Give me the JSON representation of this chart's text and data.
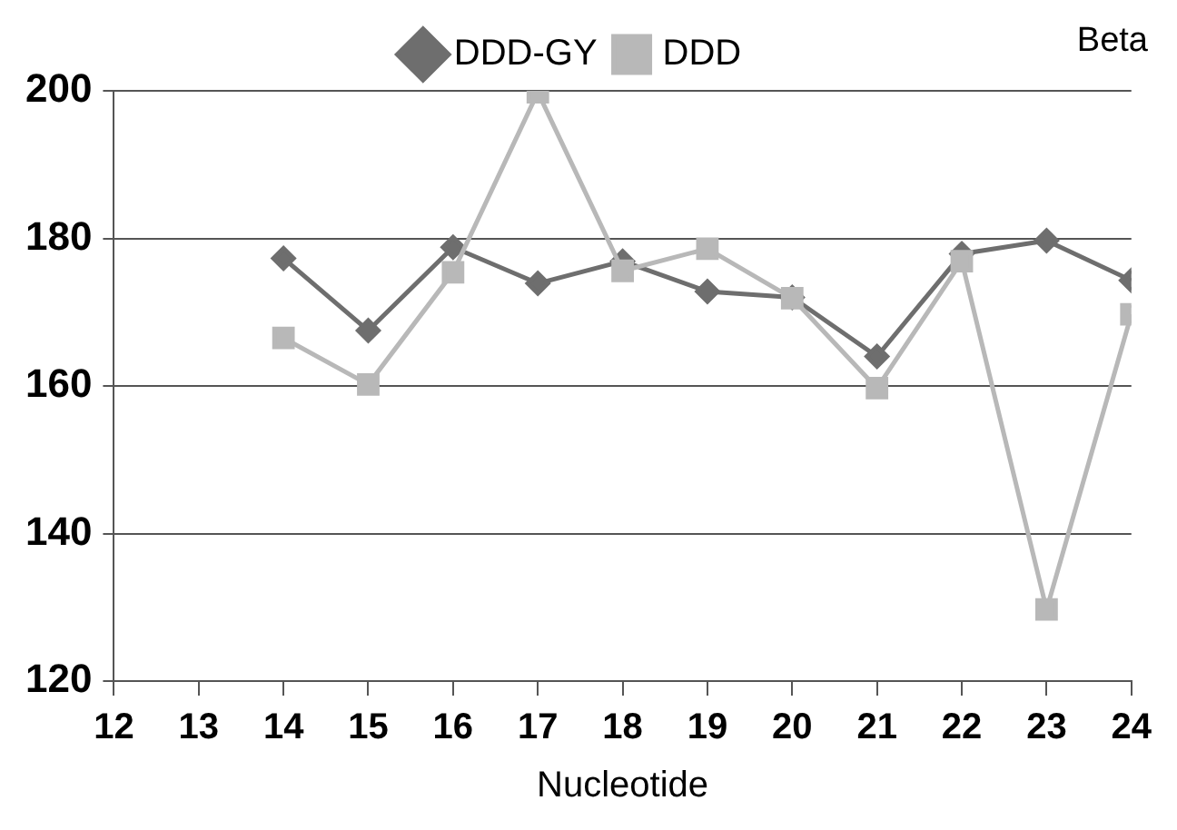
{
  "chart_data": {
    "type": "line",
    "title": "Beta",
    "xlabel": "Nucleotide",
    "x": [
      14,
      15,
      16,
      17,
      18,
      19,
      20,
      21,
      22,
      23,
      24
    ],
    "series": [
      {
        "name": "DDD-GY",
        "color": "#6e6e6e",
        "marker": "diamond",
        "values": [
          177.3,
          167.5,
          178.8,
          173.9,
          176.9,
          172.8,
          172.0,
          164.0,
          177.9,
          179.7,
          174.3
        ]
      },
      {
        "name": "DDD",
        "color": "#b8b8b8",
        "marker": "square",
        "values": [
          166.5,
          160.2,
          175.4,
          199.8,
          175.6,
          178.6,
          171.9,
          159.7,
          176.9,
          129.7,
          169.7
        ]
      }
    ],
    "xlim": [
      12,
      24
    ],
    "xticks": [
      12,
      13,
      14,
      15,
      16,
      17,
      18,
      19,
      20,
      21,
      22,
      23,
      24
    ],
    "ylim": [
      120,
      200
    ],
    "yticks": [
      120,
      140,
      160,
      180,
      200
    ],
    "grid": "y",
    "legend": "top",
    "line_style": "solid"
  }
}
